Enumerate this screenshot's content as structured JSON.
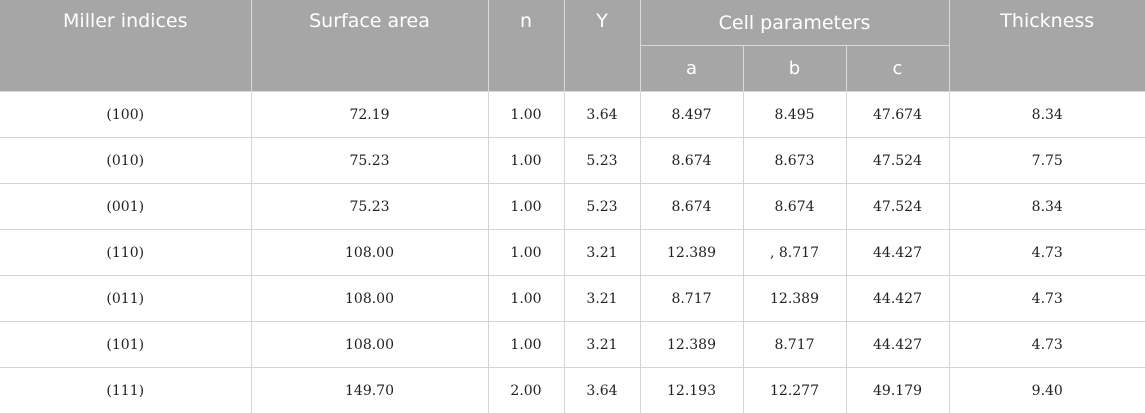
{
  "headers": {
    "miller": "Miller indices",
    "surface_area": "Surface area",
    "n": "n",
    "y": "Y",
    "cell_parameters": "Cell parameters",
    "a": "a",
    "b": "b",
    "c": "c",
    "thickness": "Thickness"
  },
  "rows": [
    {
      "miller": "(100)",
      "surface_area": "72.19",
      "n": "1.00",
      "y": "3.64",
      "a": "8.497",
      "b": "8.495",
      "c": "47.674",
      "thickness": "8.34"
    },
    {
      "miller": "(010)",
      "surface_area": "75.23",
      "n": "1.00",
      "y": "5.23",
      "a": "8.674",
      "b": "8.673",
      "c": "47.524",
      "thickness": "7.75"
    },
    {
      "miller": "(001)",
      "surface_area": "75.23",
      "n": "1.00",
      "y": "5.23",
      "a": "8.674",
      "b": "8.674",
      "c": "47.524",
      "thickness": "8.34"
    },
    {
      "miller": "(110)",
      "surface_area": "108.00",
      "n": "1.00",
      "y": "3.21",
      "a": "12.389",
      "b": ", 8.717",
      "c": "44.427",
      "thickness": "4.73"
    },
    {
      "miller": "(011)",
      "surface_area": "108.00",
      "n": "1.00",
      "y": "3.21",
      "a": "8.717",
      "b": "12.389",
      "c": "44.427",
      "thickness": "4.73"
    },
    {
      "miller": "(101)",
      "surface_area": "108.00",
      "n": "1.00",
      "y": "3.21",
      "a": "12.389",
      "b": "8.717",
      "c": "44.427",
      "thickness": "4.73"
    },
    {
      "miller": "(111)",
      "surface_area": "149.70",
      "n": "2.00",
      "y": "3.64",
      "a": "12.193",
      "b": "12.277",
      "c": "49.179",
      "thickness": "9.40"
    }
  ],
  "colors": {
    "header_background": "#a6a6a6",
    "header_text": "#ffffff",
    "grid_line": "#d4d4d4"
  }
}
